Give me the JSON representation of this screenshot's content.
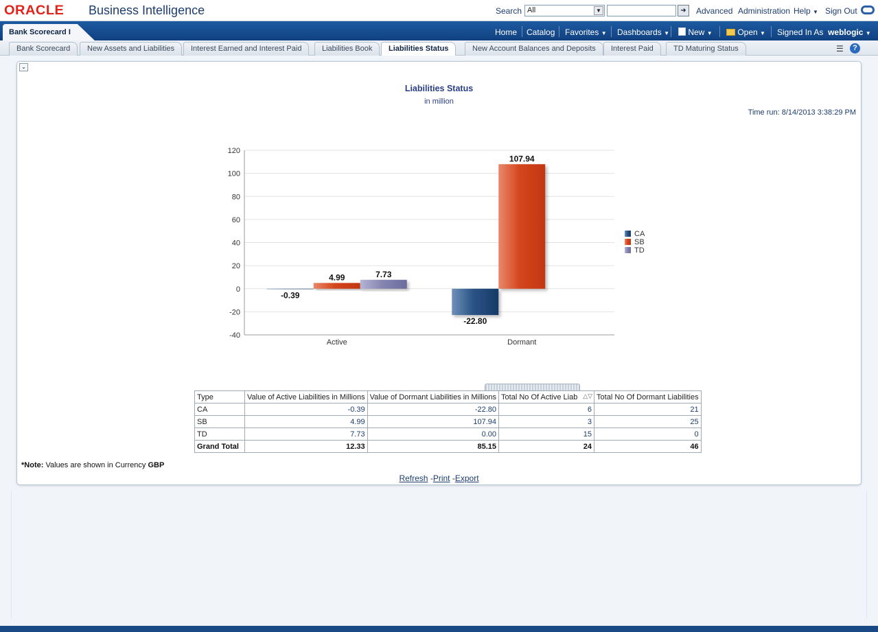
{
  "header": {
    "logo": "ORACLE",
    "product": "Business Intelligence",
    "search_label": "Search",
    "search_scope": "All",
    "search_value": "",
    "links": [
      "Advanced",
      "Administration",
      "Help",
      "Sign Out"
    ]
  },
  "nav": {
    "dashboard_tab": "Bank Scorecard I",
    "items": [
      "Home",
      "Catalog",
      "Favorites",
      "Dashboards",
      "New",
      "Open"
    ],
    "signed_in_label": "Signed In As",
    "user": "weblogic"
  },
  "tabs": [
    {
      "label": "Bank Scorecard",
      "active": false
    },
    {
      "label": "New Assets and Liabilities",
      "active": false
    },
    {
      "label": "Interest Earned and Interest Paid",
      "active": false
    },
    {
      "label": "Liabilities Book",
      "active": false
    },
    {
      "label": "Liabilities Status",
      "active": true
    },
    {
      "label": "New Account Balances and Deposits",
      "active": false
    },
    {
      "label": "Interest Paid",
      "active": false
    },
    {
      "label": "TD Maturing Status",
      "active": false
    }
  ],
  "view": {
    "title": "Liabilities Status",
    "subtitle": "in million",
    "time_run": "Time run: 8/14/2013 3:38:29 PM"
  },
  "chart_data": {
    "type": "bar",
    "title": "",
    "categories": [
      "Active",
      "Dormant"
    ],
    "series": [
      {
        "name": "CA",
        "values": [
          -0.39,
          -22.8
        ],
        "labels": [
          "-0.39",
          "-22.80"
        ],
        "color": "#1f4a7e"
      },
      {
        "name": "SB",
        "values": [
          4.99,
          107.94
        ],
        "labels": [
          "4.99",
          "107.94"
        ],
        "color": "#d0411a"
      },
      {
        "name": "TD",
        "values": [
          7.73,
          0.0
        ],
        "labels": [
          "7.73",
          ""
        ],
        "color": "#8383b0"
      }
    ],
    "ylim": [
      -40,
      120
    ],
    "yticks": [
      -40,
      -20,
      0,
      20,
      40,
      60,
      80,
      100,
      120
    ],
    "ytick_labels": [
      "-40",
      "-20",
      "0",
      "20",
      "40",
      "60",
      "80",
      "100",
      "120"
    ],
    "grid": true,
    "legend": "right",
    "xlabel": "",
    "ylabel": ""
  },
  "table": {
    "headers": [
      "Type",
      "Value of Active Liabilities in Millions",
      "Value of Dormant Liabilities in Millions",
      "Total No Of Active Liab",
      "Total No Of Dormant Liabilities"
    ],
    "rows": [
      [
        "CA",
        "-0.39",
        "-22.80",
        "6",
        "21"
      ],
      [
        "SB",
        "4.99",
        "107.94",
        "3",
        "25"
      ],
      [
        "TD",
        "7.73",
        "0.00",
        "15",
        "0"
      ]
    ],
    "total": [
      "Grand Total",
      "12.33",
      "85.15",
      "24",
      "46"
    ]
  },
  "note": {
    "prefix": "*Note:",
    "text": " Values are shown in Currency ",
    "currency": "GBP"
  },
  "footer_links": [
    "Refresh",
    "Print",
    "Export"
  ]
}
